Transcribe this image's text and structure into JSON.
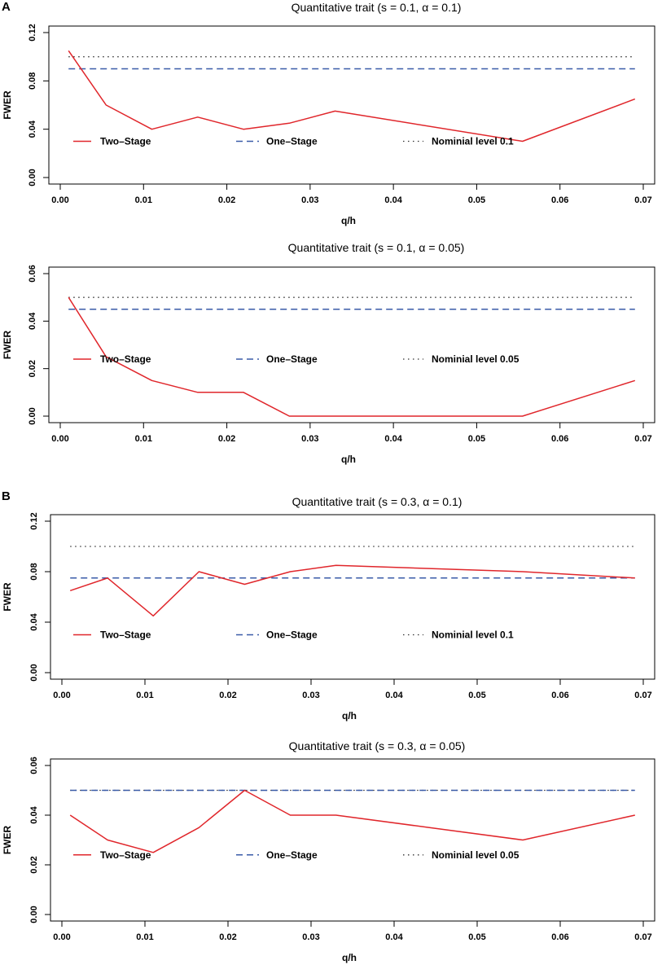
{
  "panel_labels": [
    "A",
    "B"
  ],
  "colors": {
    "two_stage": "#e0262b",
    "one_stage": "#3a5ba8",
    "nominal": "#333333",
    "axis": "#000000"
  },
  "chart_data": [
    {
      "type": "line",
      "title": "Quantitative trait (s = 0.1, α = 0.1)",
      "xlabel": "q/h",
      "ylabel": "FWER",
      "xlim": [
        0.0,
        0.07
      ],
      "ylim": [
        0.0,
        0.12
      ],
      "xticks": [
        "0.00",
        "0.01",
        "0.02",
        "0.03",
        "0.04",
        "0.05",
        "0.06",
        "0.07"
      ],
      "yticks": [
        "0.00",
        "0.04",
        "0.08",
        "0.12"
      ],
      "x": [
        0.001,
        0.0055,
        0.011,
        0.0165,
        0.022,
        0.0275,
        0.033,
        0.0555,
        0.069
      ],
      "series": [
        {
          "name": "Two–Stage",
          "style": "solid",
          "values": [
            0.105,
            0.06,
            0.04,
            0.05,
            0.04,
            0.045,
            0.055,
            0.03,
            0.065
          ]
        },
        {
          "name": "One–Stage",
          "style": "dashed",
          "values": [
            0.09,
            0.09,
            0.09,
            0.09,
            0.09,
            0.09,
            0.09,
            0.09,
            0.09
          ]
        },
        {
          "name": "Nominial level 0.1",
          "style": "dotted",
          "values": [
            0.1,
            0.1,
            0.1,
            0.1,
            0.1,
            0.1,
            0.1,
            0.1,
            0.1
          ]
        }
      ],
      "legend_y": 0.03
    },
    {
      "type": "line",
      "title": "Quantitative trait (s = 0.1, α = 0.05)",
      "xlabel": "q/h",
      "ylabel": "FWER",
      "xlim": [
        0.0,
        0.07
      ],
      "ylim": [
        0.0,
        0.06
      ],
      "xticks": [
        "0.00",
        "0.01",
        "0.02",
        "0.03",
        "0.04",
        "0.05",
        "0.06",
        "0.07"
      ],
      "yticks": [
        "0.00",
        "0.02",
        "0.04",
        "0.06"
      ],
      "x": [
        0.001,
        0.0055,
        0.011,
        0.0165,
        0.022,
        0.0275,
        0.033,
        0.0555,
        0.069
      ],
      "series": [
        {
          "name": "Two–Stage",
          "style": "solid",
          "values": [
            0.05,
            0.025,
            0.015,
            0.01,
            0.01,
            0.0,
            0.0,
            0.0,
            0.015
          ]
        },
        {
          "name": "One–Stage",
          "style": "dashed",
          "values": [
            0.045,
            0.045,
            0.045,
            0.045,
            0.045,
            0.045,
            0.045,
            0.045,
            0.045
          ]
        },
        {
          "name": "Nominial level 0.05",
          "style": "dotted",
          "values": [
            0.05,
            0.05,
            0.05,
            0.05,
            0.05,
            0.05,
            0.05,
            0.05,
            0.05
          ]
        }
      ],
      "legend_y": 0.024
    },
    {
      "type": "line",
      "title": "Quantitative trait (s = 0.3, α = 0.1)",
      "xlabel": "q/h",
      "ylabel": "FWER",
      "xlim": [
        0.0,
        0.07
      ],
      "ylim": [
        0.0,
        0.12
      ],
      "xticks": [
        "0.00",
        "0.01",
        "0.02",
        "0.03",
        "0.04",
        "0.05",
        "0.06",
        "0.07"
      ],
      "yticks": [
        "0.00",
        "0.04",
        "0.08",
        "0.12"
      ],
      "x": [
        0.001,
        0.0055,
        0.011,
        0.0165,
        0.022,
        0.0275,
        0.033,
        0.0555,
        0.069
      ],
      "series": [
        {
          "name": "Two–Stage",
          "style": "solid",
          "values": [
            0.065,
            0.075,
            0.045,
            0.08,
            0.07,
            0.08,
            0.085,
            0.08,
            0.075
          ]
        },
        {
          "name": "One–Stage",
          "style": "dashed",
          "values": [
            0.075,
            0.075,
            0.075,
            0.075,
            0.075,
            0.075,
            0.075,
            0.075,
            0.075
          ]
        },
        {
          "name": "Nominial level 0.1",
          "style": "dotted",
          "values": [
            0.1,
            0.1,
            0.1,
            0.1,
            0.1,
            0.1,
            0.1,
            0.1,
            0.1
          ]
        }
      ],
      "legend_y": 0.03
    },
    {
      "type": "line",
      "title": "Quantitative trait (s = 0.3, α = 0.05)",
      "xlabel": "q/h",
      "ylabel": "FWER",
      "xlim": [
        0.0,
        0.07
      ],
      "ylim": [
        0.0,
        0.06
      ],
      "xticks": [
        "0.00",
        "0.01",
        "0.02",
        "0.03",
        "0.04",
        "0.05",
        "0.06",
        "0.07"
      ],
      "yticks": [
        "0.00",
        "0.02",
        "0.04",
        "0.06"
      ],
      "x": [
        0.001,
        0.0055,
        0.011,
        0.0165,
        0.022,
        0.0275,
        0.033,
        0.0555,
        0.069
      ],
      "series": [
        {
          "name": "Two–Stage",
          "style": "solid",
          "values": [
            0.04,
            0.03,
            0.025,
            0.035,
            0.05,
            0.04,
            0.04,
            0.03,
            0.04
          ]
        },
        {
          "name": "One–Stage",
          "style": "dashed",
          "values": [
            0.05,
            0.05,
            0.05,
            0.05,
            0.05,
            0.05,
            0.05,
            0.05,
            0.05
          ]
        },
        {
          "name": "Nominial level 0.05",
          "style": "dotted",
          "values": [
            0.05,
            0.05,
            0.05,
            0.05,
            0.05,
            0.05,
            0.05,
            0.05,
            0.05
          ]
        }
      ],
      "legend_y": 0.024
    }
  ]
}
